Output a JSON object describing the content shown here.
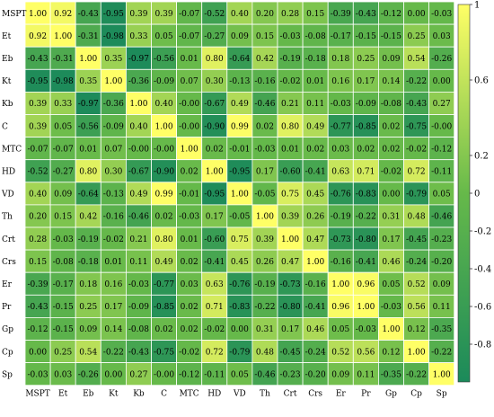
{
  "chart_data": {
    "type": "heatmap",
    "title": "",
    "xlabel": "",
    "ylabel": "",
    "variables": [
      "MSPT",
      "Et",
      "Eb",
      "Kt",
      "Kb",
      "C",
      "MTC",
      "HD",
      "VD",
      "Th",
      "Crt",
      "Crs",
      "Er",
      "Pr",
      "Gp",
      "Cp",
      "Sp"
    ],
    "values": [
      [
        "1.00",
        "0.92",
        "-0.43",
        "-0.95",
        "0.39",
        "0.39",
        "-0.07",
        "-0.52",
        "0.40",
        "0.20",
        "0.28",
        "0.15",
        "-0.39",
        "-0.43",
        "-0.12",
        "0.00",
        "-0.03"
      ],
      [
        "0.92",
        "1.00",
        "-0.31",
        "-0.98",
        "0.33",
        "0.05",
        "-0.07",
        "-0.27",
        "0.09",
        "0.15",
        "-0.03",
        "-0.08",
        "-0.17",
        "-0.15",
        "-0.15",
        "0.25",
        "0.03"
      ],
      [
        "-0.43",
        "-0.31",
        "1.00",
        "0.35",
        "-0.97",
        "-0.56",
        "0.01",
        "0.80",
        "-0.64",
        "0.42",
        "-0.19",
        "-0.18",
        "0.18",
        "0.25",
        "0.09",
        "0.54",
        "-0.26"
      ],
      [
        "-0.95",
        "-0.98",
        "0.35",
        "1.00",
        "-0.36",
        "-0.09",
        "0.07",
        "0.30",
        "-0.13",
        "-0.16",
        "-0.02",
        "0.01",
        "0.16",
        "0.17",
        "0.14",
        "-0.22",
        "0.00"
      ],
      [
        "0.39",
        "0.33",
        "-0.97",
        "-0.36",
        "1.00",
        "0.40",
        "-0.00",
        "-0.67",
        "0.49",
        "-0.46",
        "0.21",
        "0.11",
        "-0.03",
        "-0.09",
        "-0.08",
        "-0.43",
        "0.27"
      ],
      [
        "0.39",
        "0.05",
        "-0.56",
        "-0.09",
        "0.40",
        "1.00",
        "-0.00",
        "-0.90",
        "0.99",
        "0.02",
        "0.80",
        "0.49",
        "-0.77",
        "-0.85",
        "0.02",
        "-0.75",
        "-0.00"
      ],
      [
        "-0.07",
        "-0.07",
        "0.01",
        "0.07",
        "-0.00",
        "-0.00",
        "1.00",
        "0.02",
        "-0.01",
        "-0.03",
        "0.01",
        "0.02",
        "0.03",
        "0.02",
        "0.02",
        "-0.02",
        "-0.12"
      ],
      [
        "-0.52",
        "-0.27",
        "0.80",
        "0.30",
        "-0.67",
        "-0.90",
        "0.02",
        "1.00",
        "-0.95",
        "0.17",
        "-0.60",
        "-0.41",
        "0.63",
        "0.71",
        "-0.02",
        "0.72",
        "-0.11"
      ],
      [
        "0.40",
        "0.09",
        "-0.64",
        "-0.13",
        "0.49",
        "0.99",
        "-0.01",
        "-0.95",
        "1.00",
        "-0.05",
        "0.75",
        "0.45",
        "-0.76",
        "-0.83",
        "0.00",
        "-0.79",
        "0.05"
      ],
      [
        "0.20",
        "0.15",
        "0.42",
        "-0.16",
        "-0.46",
        "0.02",
        "-0.03",
        "0.17",
        "-0.05",
        "1.00",
        "0.39",
        "0.26",
        "-0.19",
        "-0.22",
        "0.31",
        "0.48",
        "-0.46"
      ],
      [
        "0.28",
        "-0.03",
        "-0.19",
        "-0.02",
        "0.21",
        "0.80",
        "0.01",
        "-0.60",
        "0.75",
        "0.39",
        "1.00",
        "0.47",
        "-0.73",
        "-0.80",
        "0.17",
        "-0.45",
        "-0.23"
      ],
      [
        "0.15",
        "-0.08",
        "-0.18",
        "0.01",
        "0.11",
        "0.49",
        "0.02",
        "-0.41",
        "0.45",
        "0.26",
        "0.47",
        "1.00",
        "-0.16",
        "-0.41",
        "0.46",
        "-0.24",
        "-0.20"
      ],
      [
        "-0.39",
        "-0.17",
        "0.18",
        "0.16",
        "-0.03",
        "-0.77",
        "0.03",
        "0.63",
        "-0.76",
        "-0.19",
        "-0.73",
        "-0.16",
        "1.00",
        "0.96",
        "0.05",
        "0.52",
        "0.09"
      ],
      [
        "-0.43",
        "-0.15",
        "0.25",
        "0.17",
        "-0.09",
        "-0.85",
        "0.02",
        "0.71",
        "-0.83",
        "-0.22",
        "-0.80",
        "-0.41",
        "0.96",
        "1.00",
        "-0.03",
        "0.56",
        "0.11"
      ],
      [
        "-0.12",
        "-0.15",
        "0.09",
        "0.14",
        "-0.08",
        "0.02",
        "0.02",
        "-0.02",
        "0.00",
        "0.31",
        "0.17",
        "0.46",
        "0.05",
        "-0.03",
        "1.00",
        "0.12",
        "-0.35"
      ],
      [
        "0.00",
        "0.25",
        "0.54",
        "-0.22",
        "-0.43",
        "-0.75",
        "-0.02",
        "0.72",
        "-0.79",
        "0.48",
        "-0.45",
        "-0.24",
        "0.52",
        "0.56",
        "0.12",
        "1.00",
        "-0.22"
      ],
      [
        "-0.03",
        "0.03",
        "-0.26",
        "0.00",
        "0.27",
        "-0.00",
        "-0.12",
        "-0.11",
        "0.05",
        "-0.46",
        "-0.23",
        "-0.20",
        "0.09",
        "0.11",
        "-0.35",
        "-0.22",
        "1.00"
      ]
    ],
    "colorbar": {
      "range": [
        -1,
        1
      ],
      "ticks": [
        "1",
        "0.6",
        "0.2",
        "0",
        "-0.2",
        "-0.4",
        "-0.6",
        "-0.8"
      ],
      "tick_values": [
        1,
        0.6,
        0.2,
        0,
        -0.2,
        -0.4,
        -0.6,
        -0.8
      ],
      "colormap": [
        "#1b8a5a",
        "#66b94a",
        "#ffff66"
      ]
    },
    "legend": "colorbar right"
  }
}
